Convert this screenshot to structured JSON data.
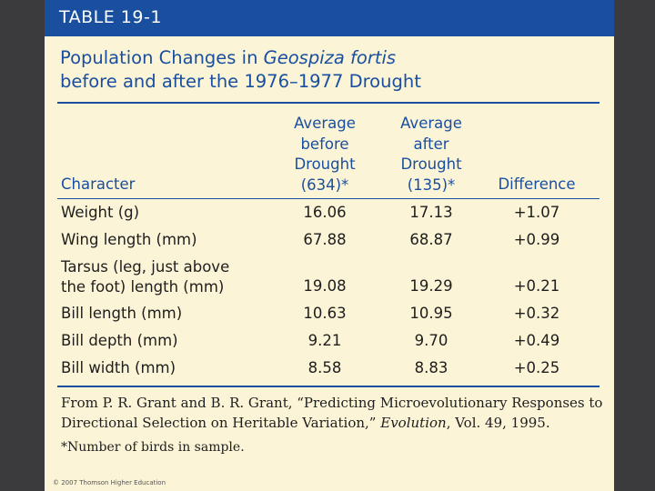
{
  "header": {
    "label": "TABLE 19-1"
  },
  "title": {
    "prefix": "Population Changes in ",
    "species": "Geospiza fortis",
    "line2": "before and after the 1976–1977 Drought"
  },
  "table": {
    "columns": {
      "character": "Character",
      "before": [
        "Average",
        "before",
        "Drought",
        "(634)*"
      ],
      "after": [
        "Average",
        "after",
        "Drought",
        "(135)*"
      ],
      "difference": "Difference"
    },
    "rows": [
      {
        "character": [
          "Weight (g)"
        ],
        "before": "16.06",
        "after": "17.13",
        "difference": "+1.07"
      },
      {
        "character": [
          "Wing length (mm)"
        ],
        "before": "67.88",
        "after": "68.87",
        "difference": "+0.99"
      },
      {
        "character": [
          "Tarsus (leg, just above",
          "the foot) length (mm)"
        ],
        "before": "19.08",
        "after": "19.29",
        "difference": "+0.21"
      },
      {
        "character": [
          "Bill length (mm)"
        ],
        "before": "10.63",
        "after": "10.95",
        "difference": "+0.32"
      },
      {
        "character": [
          "Bill depth (mm)"
        ],
        "before": "9.21",
        "after": "9.70",
        "difference": "+0.49"
      },
      {
        "character": [
          "Bill width (mm)"
        ],
        "before": "8.58",
        "after": "8.83",
        "difference": "+0.25"
      }
    ]
  },
  "source": {
    "line1": "From P. R. Grant and B. R. Grant, “Predicting Microevolutionary Responses to",
    "line2_prefix": "Directional Selection on Heritable Variation,” ",
    "journal": "Evolution",
    "line2_suffix": ", Vol. 49, 1995."
  },
  "footnote": "*Number of birds in sample.",
  "copyright": "© 2007 Thomson Higher Education",
  "colors": {
    "accent": "#1a4fa0",
    "background": "#fbf4d6",
    "frame": "#3b3b3d"
  }
}
